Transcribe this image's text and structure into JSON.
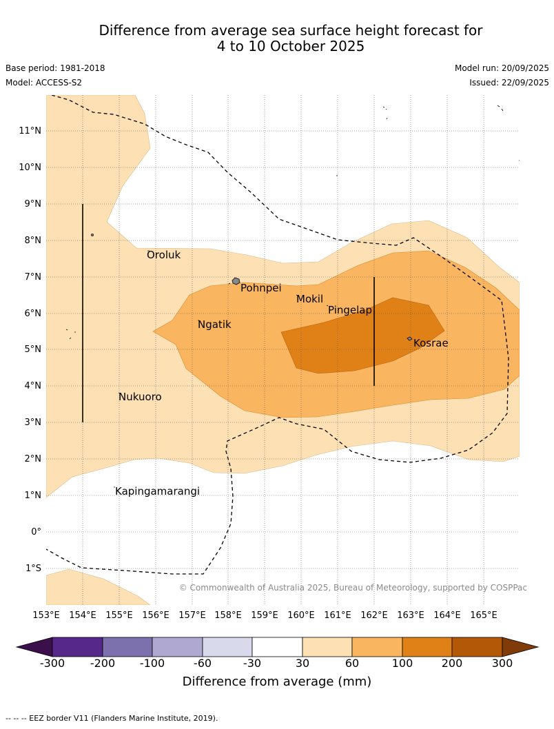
{
  "title": {
    "line1": "Difference from average sea surface height forecast for",
    "line2": "4 to 10 October 2025"
  },
  "meta": {
    "base_period": "Base period: 1981-2018",
    "model": "Model: ACCESS-S2",
    "model_run": "Model run: 20/09/2025",
    "issued": "Issued: 22/09/2025"
  },
  "map": {
    "latitude_labels": [
      "11°N",
      "10°N",
      "9°N",
      "8°N",
      "7°N",
      "6°N",
      "5°N",
      "4°N",
      "3°N",
      "2°N",
      "1°N",
      "0°",
      "1°S"
    ],
    "longitude_labels": [
      "153°E",
      "154°E",
      "155°E",
      "156°E",
      "157°E",
      "158°E",
      "159°E",
      "160°E",
      "161°E",
      "162°E",
      "163°E",
      "164°E",
      "165°E"
    ],
    "places": [
      "Oroluk",
      "Pohnpei",
      "Mokil",
      "Pingelap",
      "Ngatik",
      "Kosrae",
      "Nukuoro",
      "Kapingamarangi"
    ],
    "copyright": "© Commonwealth of Australia 2025, Bureau of Meteorology, supported by COSPPac",
    "colors": {
      "band_30_60": "#fde0b3",
      "band_60_100": "#f9b55f",
      "band_100_200": "#e08117",
      "grid": "#555555"
    }
  },
  "colorbar": {
    "title": "Difference from average (mm)",
    "ticks": [
      "-300",
      "-200",
      "-100",
      "-60",
      "-30",
      "30",
      "60",
      "100",
      "200",
      "300"
    ],
    "colors": [
      "#3b0f4c",
      "#56288a",
      "#7c70ad",
      "#afa8d1",
      "#d9d9ec",
      "#ffffff",
      "#fde0b3",
      "#f9b55f",
      "#e08117",
      "#b35806",
      "#7f3b08"
    ]
  },
  "footer": "--  --  -- EEZ border V11 (Flanders Marine Institute, 2019)."
}
